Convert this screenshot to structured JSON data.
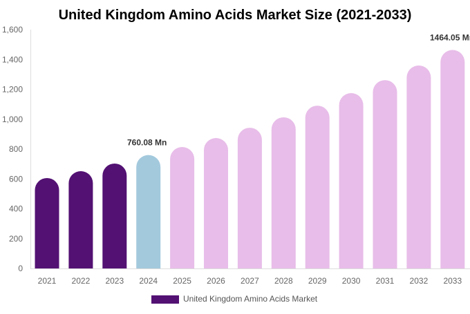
{
  "chart_data": {
    "type": "bar",
    "title": "United Kingdom Amino Acids Market Size (2021-2033)",
    "categories": [
      "2021",
      "2022",
      "2023",
      "2024",
      "2025",
      "2026",
      "2027",
      "2028",
      "2029",
      "2030",
      "2031",
      "2032",
      "2033"
    ],
    "series": [
      {
        "name": "United Kingdom Amino Acids Market",
        "values": [
          606,
          652,
          703,
          760.08,
          814,
          874,
          943,
          1013,
          1091,
          1175,
          1262,
          1360,
          1464.05
        ]
      }
    ],
    "data_labels": [
      {
        "category": "2024",
        "text": "760.08 Mn"
      },
      {
        "category": "2033",
        "text": "1464.05 Mn"
      }
    ],
    "yticks": [
      "0",
      "200",
      "400",
      "600",
      "800",
      "1,000",
      "1,200",
      "1,400",
      "1,600"
    ],
    "ylim": [
      0,
      1600
    ],
    "grid": false,
    "legend_position": "bottom",
    "colors": {
      "historical": "#531173",
      "base_year": "#a3c9dd",
      "forecast": "#e8bde9",
      "legend": "#531173"
    }
  }
}
